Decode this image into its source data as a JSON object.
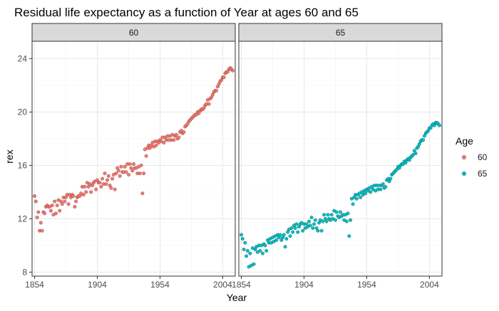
{
  "chart_data": {
    "type": "scatter",
    "title": "Residual life expectancy as a function of Year at ages 60 and 65",
    "xlabel": "Year",
    "ylabel": "rex",
    "xlim": [
      1852,
      2014
    ],
    "ylim": [
      7.7,
      25.3
    ],
    "x_ticks": [
      1854,
      1904,
      1954,
      2004
    ],
    "y_ticks": [
      8,
      12,
      16,
      20,
      24
    ],
    "grid": true,
    "legend": {
      "title": "Age",
      "placement": "right",
      "entries": [
        {
          "label": "60",
          "color": "#F8766D"
        },
        {
          "label": "65",
          "color": "#00BFC4"
        }
      ]
    },
    "panels": [
      {
        "strip": "60",
        "color": "#F8766D",
        "points": [
          [
            1854,
            13.7
          ],
          [
            1855,
            13.3
          ],
          [
            1856,
            12.1
          ],
          [
            1857,
            12.5
          ],
          [
            1858,
            11.1
          ],
          [
            1859,
            11.7
          ],
          [
            1860,
            11.1
          ],
          [
            1861,
            12.5
          ],
          [
            1862,
            12.4
          ],
          [
            1863,
            12.9
          ],
          [
            1864,
            13.0
          ],
          [
            1865,
            12.9
          ],
          [
            1866,
            12.9
          ],
          [
            1867,
            12.6
          ],
          [
            1868,
            13.0
          ],
          [
            1869,
            12.3
          ],
          [
            1870,
            13.3
          ],
          [
            1871,
            12.4
          ],
          [
            1872,
            13.0
          ],
          [
            1873,
            13.4
          ],
          [
            1874,
            12.6
          ],
          [
            1875,
            13.3
          ],
          [
            1876,
            13.1
          ],
          [
            1877,
            13.6
          ],
          [
            1878,
            13.3
          ],
          [
            1879,
            13.6
          ],
          [
            1880,
            13.8
          ],
          [
            1881,
            13.1
          ],
          [
            1882,
            13.8
          ],
          [
            1883,
            13.6
          ],
          [
            1884,
            13.8
          ],
          [
            1885,
            13.7
          ],
          [
            1886,
            12.9
          ],
          [
            1887,
            13.3
          ],
          [
            1888,
            13.6
          ],
          [
            1889,
            13.7
          ],
          [
            1890,
            13.7
          ],
          [
            1891,
            13.9
          ],
          [
            1892,
            14.4
          ],
          [
            1893,
            13.8
          ],
          [
            1894,
            14.4
          ],
          [
            1895,
            14.0
          ],
          [
            1896,
            14.7
          ],
          [
            1897,
            14.4
          ],
          [
            1898,
            14.6
          ],
          [
            1899,
            14.0
          ],
          [
            1900,
            14.5
          ],
          [
            1901,
            14.7
          ],
          [
            1902,
            14.8
          ],
          [
            1903,
            14.2
          ],
          [
            1904,
            14.9
          ],
          [
            1905,
            14.7
          ],
          [
            1906,
            14.7
          ],
          [
            1907,
            14.4
          ],
          [
            1908,
            15.0
          ],
          [
            1909,
            14.6
          ],
          [
            1910,
            15.4
          ],
          [
            1911,
            14.6
          ],
          [
            1912,
            14.9
          ],
          [
            1913,
            15.2
          ],
          [
            1914,
            14.5
          ],
          [
            1915,
            14.3
          ],
          [
            1916,
            15.0
          ],
          [
            1917,
            15.3
          ],
          [
            1918,
            14.2
          ],
          [
            1919,
            15.4
          ],
          [
            1920,
            15.8
          ],
          [
            1921,
            15.6
          ],
          [
            1922,
            15.2
          ],
          [
            1923,
            15.9
          ],
          [
            1924,
            15.5
          ],
          [
            1925,
            15.5
          ],
          [
            1926,
            15.9
          ],
          [
            1927,
            15.5
          ],
          [
            1928,
            16.1
          ],
          [
            1929,
            15.3
          ],
          [
            1930,
            16.1
          ],
          [
            1931,
            15.8
          ],
          [
            1932,
            15.6
          ],
          [
            1933,
            16.1
          ],
          [
            1934,
            15.8
          ],
          [
            1935,
            15.8
          ],
          [
            1936,
            15.4
          ],
          [
            1937,
            15.9
          ],
          [
            1938,
            15.4
          ],
          [
            1939,
            16.0
          ],
          [
            1940,
            13.9
          ],
          [
            1941,
            15.4
          ],
          [
            1942,
            17.2
          ],
          [
            1943,
            16.7
          ],
          [
            1944,
            17.3
          ],
          [
            1945,
            17.5
          ],
          [
            1946,
            17.3
          ],
          [
            1947,
            17.5
          ],
          [
            1948,
            17.7
          ],
          [
            1949,
            17.4
          ],
          [
            1950,
            17.8
          ],
          [
            1951,
            17.5
          ],
          [
            1952,
            17.8
          ],
          [
            1953,
            17.7
          ],
          [
            1954,
            17.9
          ],
          [
            1955,
            17.8
          ],
          [
            1956,
            18.1
          ],
          [
            1957,
            17.7
          ],
          [
            1958,
            18.1
          ],
          [
            1959,
            17.9
          ],
          [
            1960,
            18.2
          ],
          [
            1961,
            17.9
          ],
          [
            1962,
            18.2
          ],
          [
            1963,
            17.9
          ],
          [
            1964,
            18.3
          ],
          [
            1965,
            17.9
          ],
          [
            1966,
            18.2
          ],
          [
            1967,
            18.3
          ],
          [
            1968,
            18.0
          ],
          [
            1969,
            18.1
          ],
          [
            1970,
            18.5
          ],
          [
            1971,
            18.6
          ],
          [
            1972,
            18.4
          ],
          [
            1973,
            18.5
          ],
          [
            1974,
            18.9
          ],
          [
            1975,
            19.0
          ],
          [
            1976,
            19.1
          ],
          [
            1977,
            19.3
          ],
          [
            1978,
            19.4
          ],
          [
            1979,
            19.5
          ],
          [
            1980,
            19.6
          ],
          [
            1981,
            19.7
          ],
          [
            1982,
            19.8
          ],
          [
            1983,
            19.8
          ],
          [
            1984,
            20.0
          ],
          [
            1985,
            19.9
          ],
          [
            1986,
            20.1
          ],
          [
            1987,
            20.2
          ],
          [
            1988,
            20.2
          ],
          [
            1989,
            20.3
          ],
          [
            1990,
            20.5
          ],
          [
            1991,
            20.6
          ],
          [
            1992,
            20.9
          ],
          [
            1993,
            20.6
          ],
          [
            1994,
            21.0
          ],
          [
            1995,
            21.1
          ],
          [
            1996,
            21.3
          ],
          [
            1997,
            21.5
          ],
          [
            1998,
            21.6
          ],
          [
            1999,
            21.6
          ],
          [
            2000,
            21.9
          ],
          [
            2001,
            22.1
          ],
          [
            2002,
            22.3
          ],
          [
            2003,
            22.4
          ],
          [
            2004,
            22.6
          ],
          [
            2005,
            22.6
          ],
          [
            2006,
            22.9
          ],
          [
            2007,
            23.0
          ],
          [
            2008,
            23.0
          ],
          [
            2009,
            23.2
          ],
          [
            2010,
            23.3
          ],
          [
            2011,
            23.2
          ],
          [
            2012,
            23.1
          ]
        ]
      },
      {
        "strip": "65",
        "color": "#00BFC4",
        "points": [
          [
            1854,
            10.8
          ],
          [
            1855,
            10.5
          ],
          [
            1856,
            9.7
          ],
          [
            1857,
            10.2
          ],
          [
            1858,
            9.2
          ],
          [
            1859,
            9.6
          ],
          [
            1860,
            8.4
          ],
          [
            1861,
            9.4
          ],
          [
            1862,
            8.5
          ],
          [
            1863,
            9.8
          ],
          [
            1864,
            8.6
          ],
          [
            1865,
            9.7
          ],
          [
            1866,
            9.9
          ],
          [
            1867,
            9.5
          ],
          [
            1868,
            10.0
          ],
          [
            1869,
            9.6
          ],
          [
            1870,
            10.0
          ],
          [
            1871,
            9.4
          ],
          [
            1872,
            10.1
          ],
          [
            1873,
            10.0
          ],
          [
            1874,
            9.6
          ],
          [
            1875,
            10.4
          ],
          [
            1876,
            10.2
          ],
          [
            1877,
            10.5
          ],
          [
            1878,
            10.2
          ],
          [
            1879,
            10.6
          ],
          [
            1880,
            10.3
          ],
          [
            1881,
            10.7
          ],
          [
            1882,
            10.4
          ],
          [
            1883,
            10.8
          ],
          [
            1884,
            10.6
          ],
          [
            1885,
            10.8
          ],
          [
            1886,
            10.4
          ],
          [
            1887,
            10.6
          ],
          [
            1888,
            10.8
          ],
          [
            1889,
            9.9
          ],
          [
            1890,
            10.5
          ],
          [
            1891,
            11.0
          ],
          [
            1892,
            11.2
          ],
          [
            1893,
            10.7
          ],
          [
            1894,
            11.3
          ],
          [
            1895,
            11.0
          ],
          [
            1896,
            11.5
          ],
          [
            1897,
            11.3
          ],
          [
            1898,
            11.6
          ],
          [
            1899,
            11.0
          ],
          [
            1900,
            11.4
          ],
          [
            1901,
            11.6
          ],
          [
            1902,
            11.7
          ],
          [
            1903,
            11.1
          ],
          [
            1904,
            11.6
          ],
          [
            1905,
            11.3
          ],
          [
            1906,
            11.6
          ],
          [
            1907,
            11.4
          ],
          [
            1908,
            11.8
          ],
          [
            1909,
            11.5
          ],
          [
            1910,
            12.1
          ],
          [
            1911,
            11.3
          ],
          [
            1912,
            11.6
          ],
          [
            1913,
            11.9
          ],
          [
            1914,
            11.3
          ],
          [
            1915,
            11.1
          ],
          [
            1916,
            11.7
          ],
          [
            1917,
            11.9
          ],
          [
            1918,
            11.1
          ],
          [
            1919,
            11.8
          ],
          [
            1920,
            12.3
          ],
          [
            1921,
            12.0
          ],
          [
            1922,
            11.8
          ],
          [
            1923,
            12.3
          ],
          [
            1924,
            12.0
          ],
          [
            1925,
            11.9
          ],
          [
            1926,
            12.3
          ],
          [
            1927,
            12.0
          ],
          [
            1928,
            12.6
          ],
          [
            1929,
            11.9
          ],
          [
            1930,
            12.5
          ],
          [
            1931,
            12.2
          ],
          [
            1932,
            12.1
          ],
          [
            1933,
            12.5
          ],
          [
            1934,
            12.2
          ],
          [
            1935,
            12.3
          ],
          [
            1936,
            11.9
          ],
          [
            1937,
            12.3
          ],
          [
            1938,
            11.8
          ],
          [
            1939,
            12.4
          ],
          [
            1940,
            10.7
          ],
          [
            1941,
            11.9
          ],
          [
            1942,
            13.5
          ],
          [
            1943,
            13.1
          ],
          [
            1944,
            13.6
          ],
          [
            1945,
            13.8
          ],
          [
            1946,
            13.5
          ],
          [
            1947,
            13.8
          ],
          [
            1948,
            13.9
          ],
          [
            1949,
            13.6
          ],
          [
            1950,
            14.0
          ],
          [
            1951,
            13.8
          ],
          [
            1952,
            14.1
          ],
          [
            1953,
            13.9
          ],
          [
            1954,
            14.2
          ],
          [
            1955,
            14.1
          ],
          [
            1956,
            14.3
          ],
          [
            1957,
            14.0
          ],
          [
            1958,
            14.4
          ],
          [
            1959,
            14.2
          ],
          [
            1960,
            14.5
          ],
          [
            1961,
            14.1
          ],
          [
            1962,
            14.5
          ],
          [
            1963,
            14.2
          ],
          [
            1964,
            14.5
          ],
          [
            1965,
            14.2
          ],
          [
            1966,
            14.5
          ],
          [
            1967,
            14.6
          ],
          [
            1968,
            14.3
          ],
          [
            1969,
            14.4
          ],
          [
            1970,
            14.9
          ],
          [
            1971,
            15.0
          ],
          [
            1972,
            14.8
          ],
          [
            1973,
            15.0
          ],
          [
            1974,
            15.3
          ],
          [
            1975,
            15.4
          ],
          [
            1976,
            15.5
          ],
          [
            1977,
            15.6
          ],
          [
            1978,
            15.7
          ],
          [
            1979,
            15.9
          ],
          [
            1980,
            15.8
          ],
          [
            1981,
            16.0
          ],
          [
            1982,
            16.1
          ],
          [
            1983,
            16.1
          ],
          [
            1984,
            16.3
          ],
          [
            1985,
            16.2
          ],
          [
            1986,
            16.4
          ],
          [
            1987,
            16.5
          ],
          [
            1988,
            16.4
          ],
          [
            1989,
            16.6
          ],
          [
            1990,
            16.7
          ],
          [
            1991,
            16.8
          ],
          [
            1992,
            17.1
          ],
          [
            1993,
            16.9
          ],
          [
            1994,
            17.3
          ],
          [
            1995,
            17.4
          ],
          [
            1996,
            17.6
          ],
          [
            1997,
            17.8
          ],
          [
            1998,
            17.9
          ],
          [
            1999,
            17.9
          ],
          [
            2000,
            18.2
          ],
          [
            2001,
            18.4
          ],
          [
            2002,
            18.5
          ],
          [
            2003,
            18.6
          ],
          [
            2004,
            18.8
          ],
          [
            2005,
            18.8
          ],
          [
            2006,
            19.0
          ],
          [
            2007,
            19.1
          ],
          [
            2008,
            19.0
          ],
          [
            2009,
            19.2
          ],
          [
            2010,
            19.2
          ],
          [
            2011,
            19.1
          ],
          [
            2012,
            19.0
          ]
        ]
      }
    ]
  }
}
